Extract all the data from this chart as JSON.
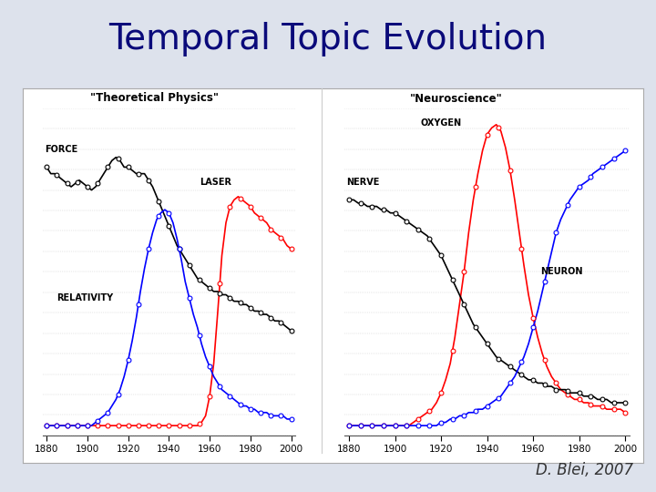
{
  "title": "Temporal Topic Evolution",
  "title_fontsize": 28,
  "title_color": "#0a0a7a",
  "attribution": "D. Blei, 2007",
  "background_color": "#dde2ec",
  "years_fine": [
    1880,
    1882,
    1884,
    1886,
    1888,
    1890,
    1892,
    1894,
    1896,
    1898,
    1900,
    1902,
    1904,
    1906,
    1908,
    1910,
    1912,
    1914,
    1916,
    1918,
    1920,
    1922,
    1924,
    1926,
    1928,
    1930,
    1932,
    1934,
    1936,
    1938,
    1940,
    1942,
    1944,
    1946,
    1948,
    1950,
    1952,
    1954,
    1956,
    1958,
    1960,
    1962,
    1964,
    1966,
    1968,
    1970,
    1972,
    1974,
    1976,
    1978,
    1980,
    1982,
    1984,
    1986,
    1988,
    1990,
    1992,
    1994,
    1996,
    1998,
    2000
  ],
  "left_title": "\"Theoretical Physics\"",
  "right_title": "\"Neuroscience\"",
  "left_force": [
    0.82,
    0.8,
    0.8,
    0.79,
    0.78,
    0.77,
    0.76,
    0.77,
    0.78,
    0.77,
    0.76,
    0.75,
    0.76,
    0.78,
    0.8,
    0.82,
    0.84,
    0.85,
    0.84,
    0.82,
    0.82,
    0.81,
    0.8,
    0.8,
    0.8,
    0.78,
    0.76,
    0.73,
    0.7,
    0.67,
    0.64,
    0.61,
    0.58,
    0.56,
    0.54,
    0.52,
    0.5,
    0.48,
    0.47,
    0.46,
    0.45,
    0.44,
    0.44,
    0.43,
    0.43,
    0.42,
    0.41,
    0.41,
    0.4,
    0.4,
    0.39,
    0.38,
    0.38,
    0.37,
    0.37,
    0.36,
    0.35,
    0.35,
    0.34,
    0.33,
    0.32
  ],
  "left_laser": [
    0.03,
    0.03,
    0.03,
    0.03,
    0.03,
    0.03,
    0.03,
    0.03,
    0.03,
    0.03,
    0.03,
    0.03,
    0.03,
    0.03,
    0.03,
    0.03,
    0.03,
    0.03,
    0.03,
    0.03,
    0.03,
    0.03,
    0.03,
    0.03,
    0.03,
    0.03,
    0.03,
    0.03,
    0.03,
    0.03,
    0.03,
    0.03,
    0.03,
    0.03,
    0.03,
    0.03,
    0.03,
    0.03,
    0.04,
    0.06,
    0.12,
    0.22,
    0.38,
    0.55,
    0.65,
    0.7,
    0.72,
    0.73,
    0.72,
    0.71,
    0.7,
    0.68,
    0.67,
    0.66,
    0.65,
    0.63,
    0.62,
    0.61,
    0.6,
    0.58,
    0.57
  ],
  "left_relativity": [
    0.03,
    0.03,
    0.03,
    0.03,
    0.03,
    0.03,
    0.03,
    0.03,
    0.03,
    0.03,
    0.03,
    0.03,
    0.04,
    0.05,
    0.06,
    0.07,
    0.09,
    0.11,
    0.14,
    0.18,
    0.23,
    0.29,
    0.36,
    0.44,
    0.51,
    0.57,
    0.62,
    0.66,
    0.68,
    0.69,
    0.68,
    0.65,
    0.6,
    0.54,
    0.47,
    0.42,
    0.37,
    0.33,
    0.28,
    0.24,
    0.21,
    0.18,
    0.16,
    0.14,
    0.13,
    0.12,
    0.11,
    0.1,
    0.09,
    0.09,
    0.08,
    0.08,
    0.07,
    0.07,
    0.07,
    0.06,
    0.06,
    0.06,
    0.06,
    0.05,
    0.05
  ],
  "right_oxygen": [
    0.03,
    0.03,
    0.03,
    0.03,
    0.03,
    0.03,
    0.03,
    0.03,
    0.03,
    0.03,
    0.03,
    0.03,
    0.03,
    0.03,
    0.04,
    0.05,
    0.06,
    0.07,
    0.08,
    0.1,
    0.13,
    0.17,
    0.22,
    0.3,
    0.4,
    0.5,
    0.62,
    0.72,
    0.8,
    0.87,
    0.92,
    0.94,
    0.95,
    0.93,
    0.88,
    0.81,
    0.72,
    0.62,
    0.52,
    0.43,
    0.36,
    0.3,
    0.25,
    0.21,
    0.18,
    0.16,
    0.14,
    0.13,
    0.12,
    0.11,
    0.11,
    0.1,
    0.1,
    0.09,
    0.09,
    0.09,
    0.08,
    0.08,
    0.08,
    0.08,
    0.07
  ],
  "right_nerve": [
    0.72,
    0.72,
    0.71,
    0.71,
    0.7,
    0.7,
    0.7,
    0.69,
    0.69,
    0.68,
    0.68,
    0.67,
    0.66,
    0.65,
    0.64,
    0.63,
    0.62,
    0.61,
    0.59,
    0.57,
    0.55,
    0.52,
    0.49,
    0.46,
    0.43,
    0.4,
    0.37,
    0.34,
    0.32,
    0.3,
    0.28,
    0.26,
    0.24,
    0.23,
    0.22,
    0.21,
    0.2,
    0.19,
    0.18,
    0.17,
    0.17,
    0.16,
    0.16,
    0.15,
    0.15,
    0.14,
    0.14,
    0.14,
    0.13,
    0.13,
    0.13,
    0.12,
    0.12,
    0.12,
    0.11,
    0.11,
    0.11,
    0.1,
    0.1,
    0.1,
    0.1
  ],
  "right_neuron": [
    0.03,
    0.03,
    0.03,
    0.03,
    0.03,
    0.03,
    0.03,
    0.03,
    0.03,
    0.03,
    0.03,
    0.03,
    0.03,
    0.03,
    0.03,
    0.03,
    0.03,
    0.03,
    0.03,
    0.03,
    0.04,
    0.04,
    0.05,
    0.05,
    0.06,
    0.06,
    0.07,
    0.07,
    0.08,
    0.08,
    0.09,
    0.1,
    0.11,
    0.12,
    0.14,
    0.16,
    0.18,
    0.21,
    0.24,
    0.28,
    0.33,
    0.38,
    0.44,
    0.5,
    0.56,
    0.62,
    0.66,
    0.69,
    0.72,
    0.74,
    0.76,
    0.77,
    0.78,
    0.8,
    0.81,
    0.82,
    0.83,
    0.84,
    0.85,
    0.86,
    0.87
  ],
  "years_markers": [
    1880,
    1885,
    1890,
    1895,
    1900,
    1905,
    1910,
    1915,
    1920,
    1925,
    1930,
    1935,
    1940,
    1945,
    1950,
    1955,
    1960,
    1965,
    1970,
    1975,
    1980,
    1985,
    1990,
    1995,
    2000
  ],
  "colors": [
    "black",
    "red",
    "blue"
  ],
  "marker": "o",
  "markersize": 3.5,
  "linewidth": 1.2,
  "xlabel_ticks": [
    1880,
    1900,
    1920,
    1940,
    1960,
    1980,
    2000
  ]
}
